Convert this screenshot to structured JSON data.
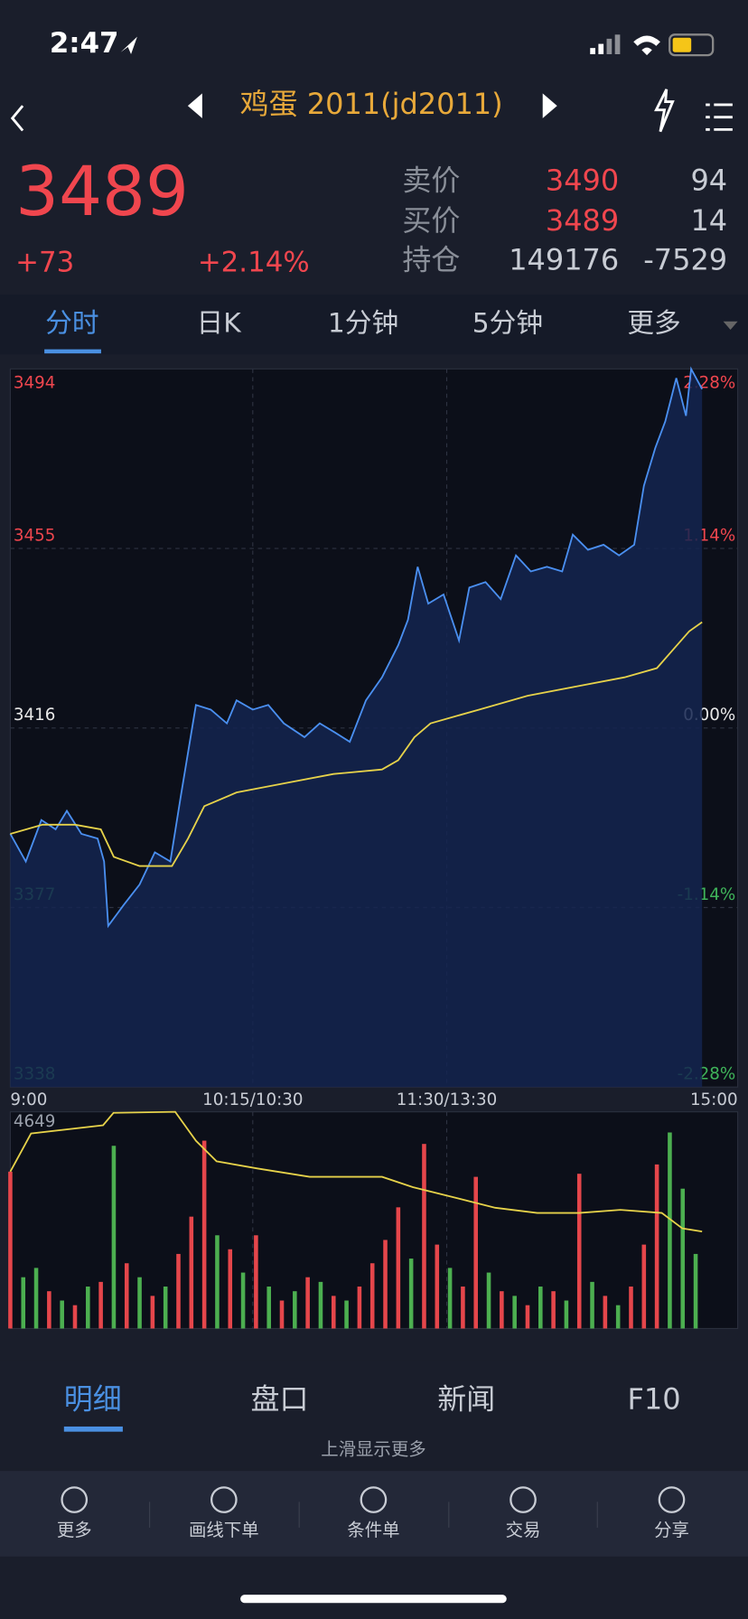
{
  "status": {
    "time": "2:47"
  },
  "header": {
    "title": "鸡蛋 2011(jd2011)"
  },
  "quote": {
    "price": "3489",
    "change": "+73",
    "percent": "+2.14%",
    "book": [
      [
        "卖价",
        "3490",
        "94"
      ],
      [
        "买价",
        "3489",
        "14"
      ],
      [
        "持仓",
        "149176",
        "-7529"
      ]
    ]
  },
  "tabs": [
    "分时",
    "日K",
    "1分钟",
    "5分钟",
    "更多"
  ],
  "chart_data": [
    {
      "type": "line",
      "xlim": [
        0,
        225
      ],
      "xticks": [
        {
          "value": 0,
          "label": "9:00"
        },
        {
          "value": 75,
          "label": "10:15/10:30"
        },
        {
          "value": 135,
          "label": "11:30/13:30"
        },
        {
          "value": 225,
          "label": "15:00"
        }
      ],
      "ylim": [
        3338,
        3494
      ],
      "yticks": [
        3338,
        3377,
        3416,
        3455,
        3494
      ],
      "y2lim": [
        -2.28,
        2.28
      ],
      "y2ticks": [
        {
          "value": -2.28,
          "label": "-2.28%"
        },
        {
          "value": -1.14,
          "label": "-1.14%"
        },
        {
          "value": 0,
          "label": "0.00%"
        },
        {
          "value": 1.14,
          "label": "1.14%"
        },
        {
          "value": 2.28,
          "label": "2.28%"
        }
      ],
      "series": [
        {
          "color": "#4a8ff0",
          "x": [
            0,
            4.8,
            9.6,
            14,
            17.5,
            22,
            27,
            29,
            30.3,
            35,
            40,
            44.7,
            49.5,
            52.7,
            57.4,
            62,
            67,
            70,
            75,
            79.8,
            84.6,
            91,
            95.7,
            100.5,
            105,
            110,
            115,
            120,
            123,
            126,
            129.3,
            134,
            138.8,
            142,
            147,
            151.7,
            156.4,
            161,
            166,
            170.7,
            174,
            178.7,
            183.5,
            188.3,
            193,
            196,
            199.5,
            202.6,
            206,
            209,
            210.6,
            214
          ],
          "values": [
            3393,
            3387,
            3396,
            3394,
            3398,
            3393,
            3392,
            3387,
            3373,
            3377.5,
            3382,
            3389,
            3387,
            3401,
            3421,
            3420,
            3417,
            3422,
            3420,
            3421,
            3417,
            3414,
            3417,
            3415,
            3413,
            3422,
            3427,
            3434,
            3439.5,
            3451,
            3443,
            3445,
            3435,
            3446.5,
            3447.7,
            3444,
            3453.5,
            3450,
            3451,
            3450,
            3458,
            3454.7,
            3455.8,
            3453.5,
            3455.8,
            3468.6,
            3476.8,
            3482.6,
            3492,
            3483.8,
            3494,
            3489.6
          ]
        },
        {
          "color": "#e6d24a",
          "x": [
            0,
            10,
            20,
            28,
            32,
            40,
            50,
            55,
            60,
            70,
            85,
            100,
            115,
            120,
            125,
            130,
            145,
            160,
            175,
            190,
            200,
            205,
            210,
            214
          ],
          "values": [
            3393,
            3395,
            3395,
            3394,
            3388,
            3386,
            3386,
            3392,
            3399,
            3402,
            3404,
            3406,
            3407,
            3409,
            3414,
            3417,
            3420,
            3423,
            3425,
            3427,
            3429,
            3433,
            3437,
            3439
          ]
        }
      ]
    },
    {
      "type": "bar",
      "xlim": [
        0,
        225
      ],
      "ylim": [
        0,
        4649
      ],
      "yticks": [
        4649
      ],
      "x": [
        0,
        4,
        8,
        12,
        16,
        20,
        24,
        28,
        32,
        36,
        40,
        44,
        48,
        52,
        56,
        60,
        64,
        68,
        72,
        76,
        80,
        84,
        88,
        92,
        96,
        100,
        104,
        108,
        112,
        116,
        120,
        124,
        128,
        132,
        136,
        140,
        144,
        148,
        152,
        156,
        160,
        164,
        168,
        172,
        176,
        180,
        184,
        188,
        192,
        196,
        200,
        204,
        208,
        212
      ],
      "values": [
        3365,
        1100,
        1300,
        800,
        600,
        500,
        900,
        1000,
        3920,
        1400,
        1100,
        700,
        900,
        1600,
        2400,
        4030,
        2000,
        1700,
        1200,
        2000,
        900,
        600,
        800,
        1100,
        1000,
        700,
        600,
        900,
        1400,
        1900,
        2600,
        1500,
        3960,
        1800,
        1300,
        900,
        3254,
        1200,
        800,
        700,
        500,
        900,
        800,
        600,
        3320,
        1000,
        700,
        500,
        900,
        1800,
        3520,
        4206,
        3000,
        1600
      ],
      "colors": [
        "#e5464b",
        "#4caf50",
        "#4caf50",
        "#e5464b",
        "#4caf50",
        "#e5464b",
        "#4caf50",
        "#e5464b",
        "#4caf50",
        "#e5464b",
        "#4caf50",
        "#e5464b",
        "#4caf50",
        "#e5464b",
        "#e5464b",
        "#e5464b",
        "#4caf50",
        "#e5464b",
        "#4caf50",
        "#e5464b",
        "#4caf50",
        "#e5464b",
        "#4caf50",
        "#e5464b",
        "#4caf50",
        "#e5464b",
        "#4caf50",
        "#e5464b",
        "#e5464b",
        "#e5464b",
        "#e5464b",
        "#4caf50",
        "#e5464b",
        "#e5464b",
        "#4caf50",
        "#e5464b",
        "#e5464b",
        "#4caf50",
        "#e5464b",
        "#4caf50",
        "#e5464b",
        "#4caf50",
        "#e5464b",
        "#4caf50",
        "#e5464b",
        "#4caf50",
        "#e5464b",
        "#4caf50",
        "#e5464b",
        "#e5464b",
        "#e5464b",
        "#4caf50",
        "#4caf50",
        "#4caf50"
      ],
      "line": {
        "color": "#e6d24a",
        "x": [
          0,
          6.4,
          28.7,
          31.9,
          51,
          57.4,
          63.8,
          76.6,
          92.6,
          115,
          124.5,
          137.3,
          150,
          163,
          175.9,
          188.7,
          201.5,
          207.9,
          214
        ],
        "values": [
          3365,
          4184,
          4361,
          4627,
          4649,
          4029,
          3586,
          3431,
          3254,
          3254,
          3033,
          2811,
          2590,
          2479,
          2479,
          2546,
          2479,
          2147,
          2081
        ]
      }
    }
  ],
  "detail_tabs": [
    "明细",
    "盘口",
    "新闻",
    "F10"
  ],
  "hint": "上滑显示更多",
  "toolbar": [
    "更多",
    "画线下单",
    "条件单",
    "交易",
    "分享"
  ]
}
